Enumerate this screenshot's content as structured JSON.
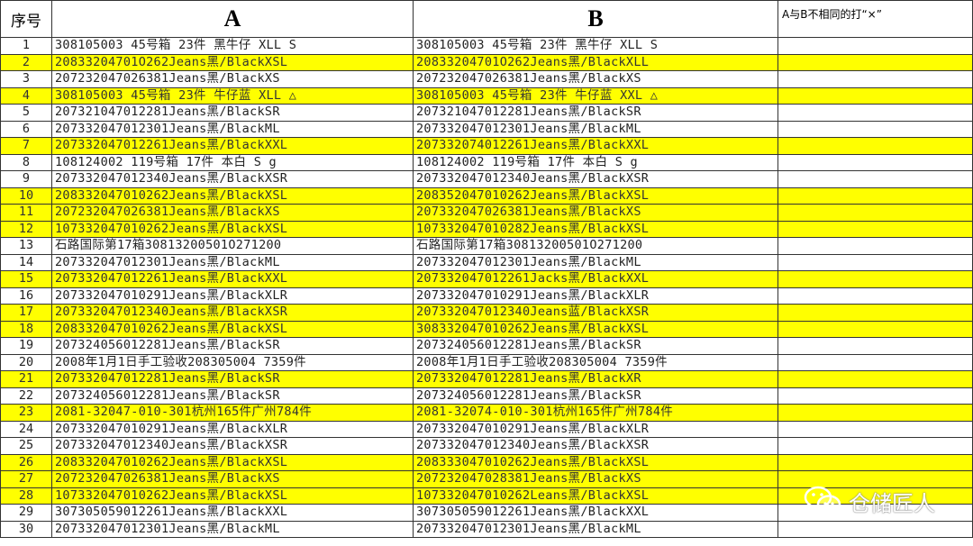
{
  "headers": {
    "index": "序号",
    "a": "A",
    "b": "B",
    "mark": "A与B不相同的打“×”"
  },
  "highlight_color": "#ffff00",
  "rows": [
    {
      "n": "1",
      "a": "308105003 45号箱 23件 黑牛仔 XLL S",
      "b": "308105003 45号箱 23件 黑牛仔 XLL S",
      "highlight": false
    },
    {
      "n": "2",
      "a": "20833204701O262Jeans黑/BlackXSL",
      "b": "20833204701O262Jeans黑/BlackXLL",
      "highlight": true
    },
    {
      "n": "3",
      "a": "207232047026381Jeans黑/BlackXS",
      "b": "207232047026381Jeans黑/BlackXS",
      "highlight": false
    },
    {
      "n": "4",
      "a": "308105003 45号箱 23件 牛仔蓝 XLL △",
      "b": "308105003 45号箱 23件 牛仔蓝 XXL △",
      "highlight": true
    },
    {
      "n": "5",
      "a": "207321047012281Jeans黑/BlackSR",
      "b": "207321047012281Jeans黑/BlackSR",
      "highlight": false
    },
    {
      "n": "6",
      "a": "207332047012301Jeans黑/BlackML",
      "b": "207332047012301Jeans黑/BlackML",
      "highlight": false
    },
    {
      "n": "7",
      "a": "207332047012261Jeans黑/BlackXXL",
      "b": "207332074012261Jeans黑/BlackXXL",
      "highlight": true
    },
    {
      "n": "8",
      "a": "108124002 119号箱 17件 本白 S g",
      "b": "108124002 119号箱 17件 本白 S g",
      "highlight": false
    },
    {
      "n": "9",
      "a": "207332047012340Jeans黑/BlackXSR",
      "b": "207332047012340Jeans黑/BlackXSR",
      "highlight": false
    },
    {
      "n": "10",
      "a": "208332047010262Jeans黑/BlackXSL",
      "b": "208352047010262Jeans黑/BlackXSL",
      "highlight": true
    },
    {
      "n": "11",
      "a": "207232047026381Jeans黑/BlackXS",
      "b": "207332047026381Jeans黑/BlackXS",
      "highlight": true
    },
    {
      "n": "12",
      "a": "107332047010262Jeans黑/BlackXSL",
      "b": "107332047010282Jeans黑/BlackXSL",
      "highlight": true
    },
    {
      "n": "13",
      "a": "石路国际第17箱30813200501O271200",
      "b": "石路国际第17箱30813200501O271200",
      "highlight": false
    },
    {
      "n": "14",
      "a": "207332047012301Jeans黑/BlackML",
      "b": "207332047012301Jeans黑/BlackML",
      "highlight": false
    },
    {
      "n": "15",
      "a": "207332047012261Jeans黑/BlackXXL",
      "b": "207332047012261Jacks黑/BlackXXL",
      "highlight": true
    },
    {
      "n": "16",
      "a": "207332047010291Jeans黑/BlackXLR",
      "b": "207332047010291Jeans黑/BlackXLR",
      "highlight": false
    },
    {
      "n": "17",
      "a": "207332047012340Jeans黑/BlackXSR",
      "b": "207332047012340Jeans蓝/BlackXSR",
      "highlight": true
    },
    {
      "n": "18",
      "a": "208332047010262Jeans黑/BlackXSL",
      "b": "308332047010262Jeans黑/BlackXSL",
      "highlight": true
    },
    {
      "n": "19",
      "a": "207324056012281Jeans黑/BlackSR",
      "b": "207324056012281Jeans黑/BlackSR",
      "highlight": false
    },
    {
      "n": "20",
      "a": "2008年1月1日手工验收208305004 7359件",
      "b": "2008年1月1日手工验收208305004 7359件",
      "highlight": false
    },
    {
      "n": "21",
      "a": "207332047012281Jeans黑/BlackSR",
      "b": "207332047012281Jeans黑/BlackXR",
      "highlight": true
    },
    {
      "n": "22",
      "a": "207324056012281Jeans黑/BlackSR",
      "b": "207324056012281Jeans黑/BlackSR",
      "highlight": false
    },
    {
      "n": "23",
      "a": "2081-32047-010-301杭州165件广州784件",
      "b": "2081-32074-010-301杭州165件广州784件",
      "highlight": true
    },
    {
      "n": "24",
      "a": "207332047010291Jeans黑/BlackXLR",
      "b": "207332047010291Jeans黑/BlackXLR",
      "highlight": false
    },
    {
      "n": "25",
      "a": "207332047012340Jeans黑/BlackXSR",
      "b": "207332047012340Jeans黑/BlackXSR",
      "highlight": false
    },
    {
      "n": "26",
      "a": "208332047010262Jeans黑/BlackXSL",
      "b": "208333047010262Jeans黑/BlackXSL",
      "highlight": true
    },
    {
      "n": "27",
      "a": "207232047026381Jeans黑/BlackXS",
      "b": "207232047028381Jeans黑/BlackXS",
      "highlight": true
    },
    {
      "n": "28",
      "a": "107332047010262Jeans黑/BlackXSL",
      "b": "107332047010262Leans黑/BlackXSL",
      "highlight": true
    },
    {
      "n": "29",
      "a": "307305059012261Jeans黑/BlackXXL",
      "b": "307305059012261Jeans黑/BlackXXL",
      "highlight": false
    },
    {
      "n": "30",
      "a": "207332047012301Jeans黑/BlackML",
      "b": "207332047012301Jeans黑/BlackML",
      "highlight": false
    }
  ],
  "watermark": {
    "icon": "wechat-icon",
    "text": "仓储匠人"
  }
}
